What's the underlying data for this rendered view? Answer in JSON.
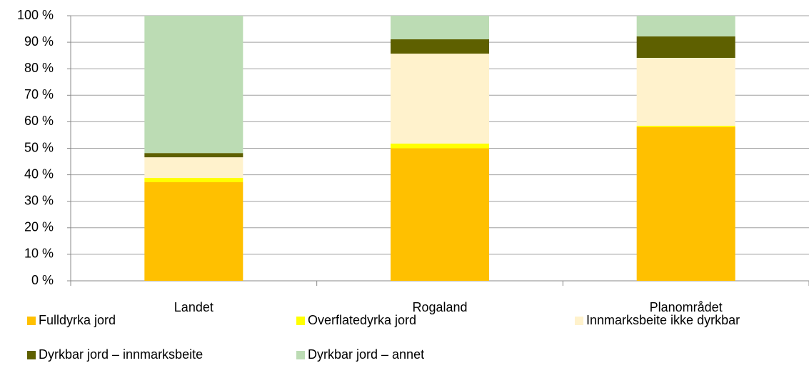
{
  "chart_data": {
    "type": "stacked_bar",
    "categories": [
      "Landet",
      "Rogaland",
      "Planområdet"
    ],
    "series": [
      {
        "name": "Fulldyrka jord",
        "color": "#ffc000",
        "values": [
          37.2,
          50.0,
          58.0
        ]
      },
      {
        "name": "Overflatedyrka jord",
        "color": "#ffff00",
        "values": [
          1.6,
          1.8,
          0.5
        ]
      },
      {
        "name": "Innmarksbeite ikke dyrkbar",
        "color": "#fff2cc",
        "values": [
          7.8,
          33.9,
          25.6
        ]
      },
      {
        "name": "Dyrkbar jord – innmarksbeite",
        "color": "#5e6000",
        "values": [
          1.6,
          5.4,
          8.1
        ]
      },
      {
        "name": "Dyrkbar jord – annet",
        "color": "#bcdcb4",
        "values": [
          51.8,
          8.9,
          7.8
        ]
      }
    ],
    "ylim": [
      0,
      100
    ],
    "yticks": [
      {
        "value": 0,
        "label": "0 %"
      },
      {
        "value": 10,
        "label": "10 %"
      },
      {
        "value": 20,
        "label": "20 %"
      },
      {
        "value": 30,
        "label": "30 %"
      },
      {
        "value": 40,
        "label": "40 %"
      },
      {
        "value": 50,
        "label": "50 %"
      },
      {
        "value": 60,
        "label": "60 %"
      },
      {
        "value": 70,
        "label": "70 %"
      },
      {
        "value": 80,
        "label": "80 %"
      },
      {
        "value": 90,
        "label": "90 %"
      },
      {
        "value": 100,
        "label": "100 %"
      }
    ],
    "grid": true
  }
}
